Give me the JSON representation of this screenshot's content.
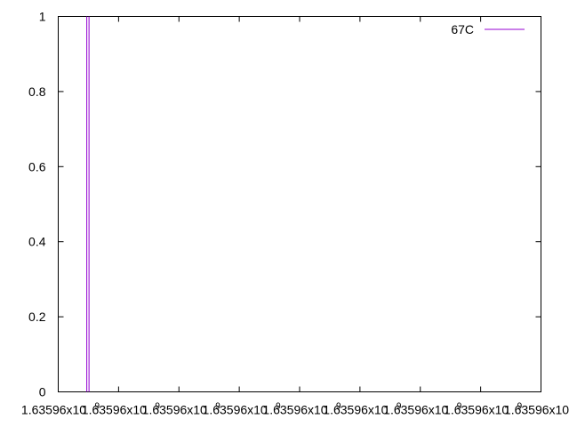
{
  "chart_data": {
    "type": "line",
    "title": "",
    "xlabel": "",
    "ylabel": "",
    "ylim": [
      0,
      1
    ],
    "y_ticks": [
      "0",
      "0.2",
      "0.4",
      "0.6",
      "0.8",
      "1"
    ],
    "x_tick_labels": [
      "1.63596x10",
      "1.63596x10",
      "1.63596x10",
      "1.63596x10",
      "1.63596x10",
      "1.63596x10",
      "1.63596x10",
      "1.63596x10",
      "1.63596x10"
    ],
    "x_tick_exponent": "9",
    "legend_position": "top-right",
    "grid": false,
    "series": [
      {
        "name": "67C",
        "color": "#9400d3",
        "x_fraction": 0.061,
        "y": [
          0,
          1
        ]
      }
    ]
  }
}
